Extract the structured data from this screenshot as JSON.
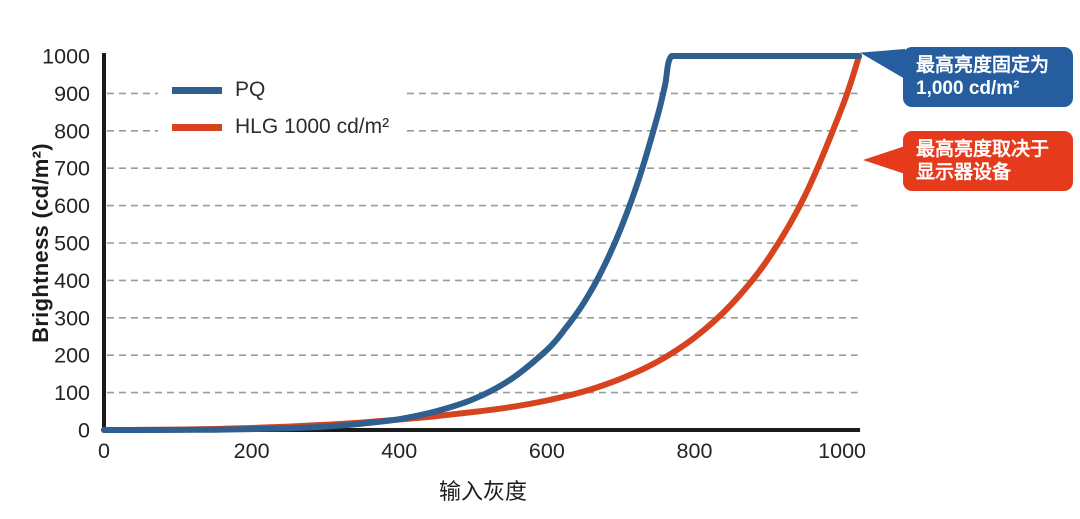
{
  "chart_data": {
    "type": "line",
    "title": "",
    "xlabel": "输入灰度",
    "ylabel": "Brightness (cd/m²)",
    "xlim": [
      0,
      1023
    ],
    "ylim": [
      0,
      1000
    ],
    "xticks": [
      0,
      200,
      400,
      600,
      800,
      1000
    ],
    "yticks": [
      0,
      100,
      200,
      300,
      400,
      500,
      600,
      700,
      800,
      900,
      1000
    ],
    "gridlines": [
      100,
      200,
      300,
      400,
      500,
      600,
      700,
      800,
      900
    ],
    "grid_style": "dashed-horizontal",
    "legend_position": "top-left-inside",
    "axis_color": "#1b1b1b",
    "tick_label_color": "#242424",
    "gridline_color": "#9a9a9a",
    "series": [
      {
        "name": "PQ",
        "color": "#2e5f8e",
        "x": [
          0,
          50,
          100,
          150,
          200,
          250,
          300,
          350,
          400,
          450,
          500,
          550,
          600,
          625,
          650,
          675,
          700,
          725,
          750,
          760,
          769,
          800,
          900,
          1023
        ],
        "y": [
          0,
          0.1,
          0.3,
          0.9,
          2.3,
          4.8,
          9.2,
          17,
          29,
          50,
          82,
          134,
          214,
          271,
          340,
          428,
          538,
          673,
          840,
          921,
          1000,
          1000,
          1000,
          1000
        ]
      },
      {
        "name": "HLG 1000 cd/m²",
        "color": "#d7431e",
        "x": [
          0,
          50,
          100,
          150,
          200,
          250,
          300,
          350,
          400,
          450,
          500,
          550,
          600,
          650,
          700,
          750,
          800,
          850,
          900,
          950,
          1000,
          1023
        ],
        "y": [
          0,
          0.2,
          1,
          2.7,
          5.3,
          9.1,
          14,
          20,
          28,
          37,
          48,
          61,
          79,
          103,
          137,
          183,
          247,
          336,
          458,
          628,
          863,
          1000
        ]
      }
    ],
    "annotations": [
      {
        "id": "pq-max",
        "lines": [
          "最高亮度固定为",
          "1,000 cd/m²"
        ],
        "color": "#255d9e",
        "points_to": "end of PQ plateau at 1,000 cd/m²"
      },
      {
        "id": "hlg-max",
        "lines": [
          "最高亮度取决于",
          "显示器设备"
        ],
        "color": "#e53b1c",
        "points_to": "upper section of HLG curve"
      }
    ]
  }
}
